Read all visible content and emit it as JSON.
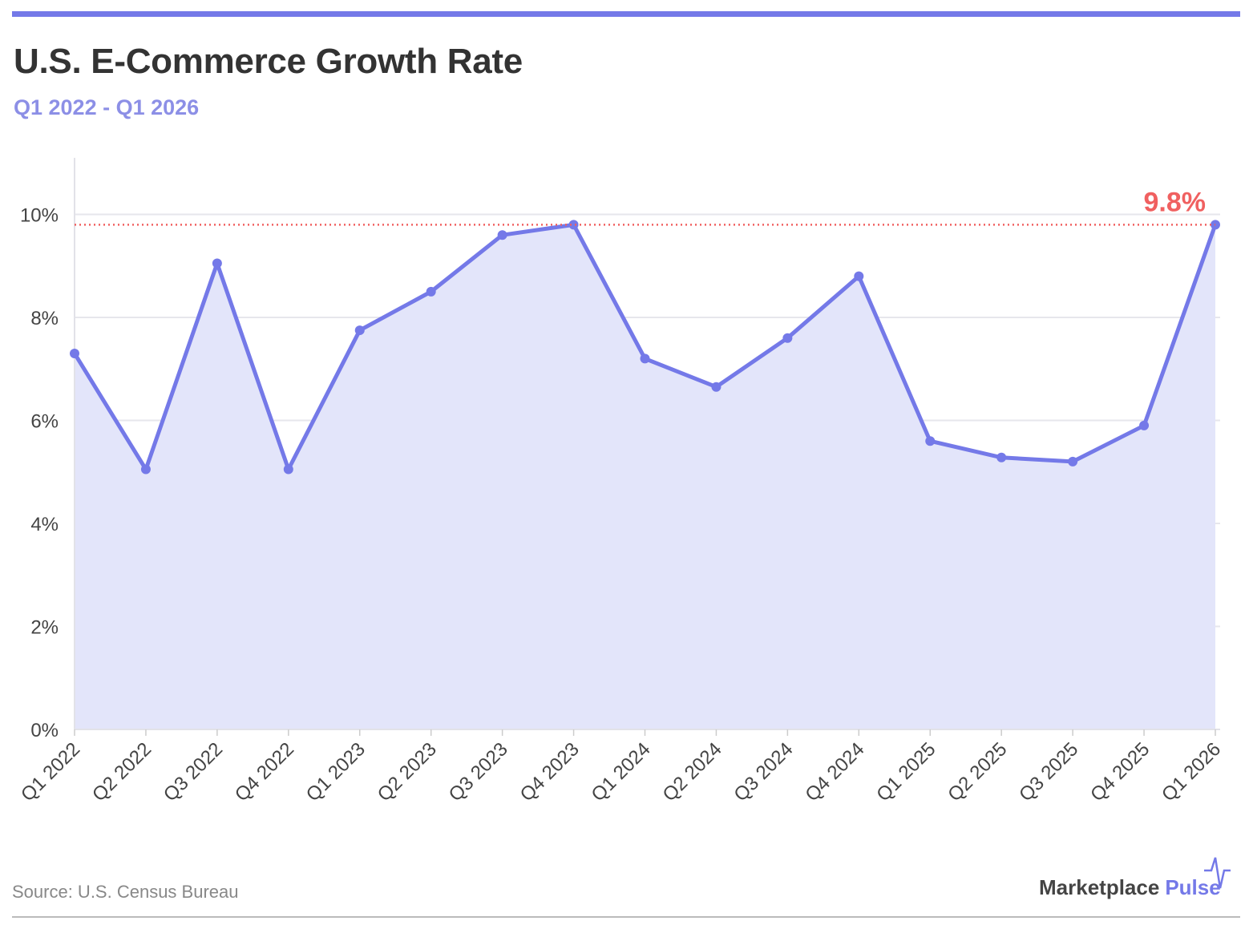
{
  "header": {
    "title": "U.S. E-Commerce Growth Rate",
    "subtitle": "Q1 2022 - Q1 2026"
  },
  "footer": {
    "source": "Source: U.S. Census Bureau",
    "brand_part1": "Marketplace",
    "brand_part2": "Pulse"
  },
  "colors": {
    "accent": "#7479e8",
    "line": "#7479e8",
    "area_fill": "#e3e5fa",
    "highlight": "#f06060",
    "text": "#333333"
  },
  "chart_data": {
    "type": "area",
    "title": "U.S. E-Commerce Growth Rate",
    "subtitle": "Q1 2022 - Q1 2026",
    "categories": [
      "Q1 2022",
      "Q2 2022",
      "Q3 2022",
      "Q4 2022",
      "Q1 2023",
      "Q2 2023",
      "Q3 2023",
      "Q4 2023",
      "Q1 2024",
      "Q2 2024",
      "Q3 2024",
      "Q4 2024",
      "Q1 2025",
      "Q2 2025",
      "Q3 2025",
      "Q4 2025",
      "Q1 2026"
    ],
    "series": [
      {
        "values": [
          7.3,
          5.05,
          9.05,
          5.05,
          7.75,
          8.5,
          9.6,
          9.8,
          7.2,
          6.65,
          7.6,
          8.8,
          5.6,
          5.28,
          5.2,
          5.9,
          9.8
        ]
      }
    ],
    "yticks": [
      0,
      2,
      4,
      6,
      8,
      10
    ],
    "ytick_labels": [
      "0%",
      "2%",
      "4%",
      "6%",
      "8%",
      "10%"
    ],
    "ylim": [
      0,
      11.1
    ],
    "xlabel": "",
    "ylabel": "",
    "grid": true,
    "legend": false,
    "reference_line": {
      "value": 9.8,
      "style": "dotted"
    },
    "annotation": {
      "text": "9.8%",
      "category": "Q1 2026",
      "value": 9.8
    }
  }
}
